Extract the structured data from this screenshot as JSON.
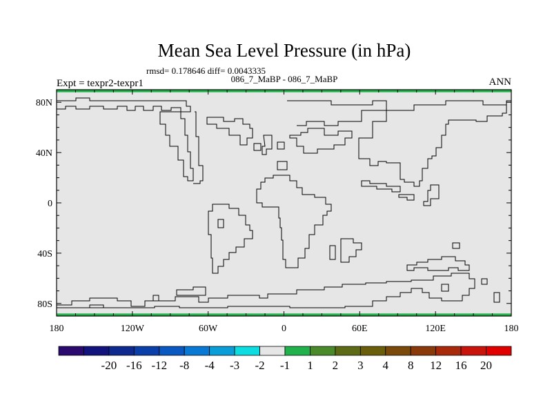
{
  "chart_data": {
    "type": "heatmap",
    "title": "Mean Sea Level Pressure (in hPa)",
    "subtitle_stats": "rmsd= 0.178646 diff= 0.0043335",
    "subtitle_case": "086_7_MaBP - 086_7_MaBP",
    "left_label": "Expt = texpr2-texpr1",
    "right_label": "ANN",
    "x_ticks": [
      {
        "value": -180,
        "label": "180"
      },
      {
        "value": -120,
        "label": "120W"
      },
      {
        "value": -60,
        "label": "60W"
      },
      {
        "value": 0,
        "label": "0"
      },
      {
        "value": 60,
        "label": "60E"
      },
      {
        "value": 120,
        "label": "120E"
      },
      {
        "value": 180,
        "label": "180"
      }
    ],
    "y_ticks": [
      {
        "value": 80,
        "label": "80N"
      },
      {
        "value": 40,
        "label": "40N"
      },
      {
        "value": 0,
        "label": "0"
      },
      {
        "value": -40,
        "label": "40S"
      },
      {
        "value": -80,
        "label": "80S"
      }
    ],
    "xlim": [
      -180,
      180
    ],
    "ylim": [
      -90,
      90
    ],
    "background_field": {
      "range": "-1 to 1",
      "color": "#e6e6e6"
    },
    "polar_bands": [
      {
        "lat_range": [
          88,
          90
        ],
        "range": "1 to 2",
        "color": "#22b24c"
      },
      {
        "lat_range": [
          -90,
          -88
        ],
        "range": "1 to 2",
        "color": "#22b24c"
      }
    ],
    "colorbar": {
      "colors": [
        "#2a0a6e",
        "#13137e",
        "#0e2a8f",
        "#0a3ea8",
        "#0a58c2",
        "#0a79d6",
        "#0a9ed8",
        "#0ddde0",
        "#e6e6e6",
        "#22b24c",
        "#4a8a2a",
        "#5d6b16",
        "#6b5e0a",
        "#7a4a0a",
        "#8a3a0a",
        "#a82a0a",
        "#c8140a",
        "#e00000"
      ],
      "labels": [
        "-20",
        "-16",
        "-12",
        "-8",
        "-4",
        "-3",
        "-2",
        "-1",
        "1",
        "2",
        "3",
        "4",
        "8",
        "12",
        "16",
        "20"
      ]
    }
  }
}
